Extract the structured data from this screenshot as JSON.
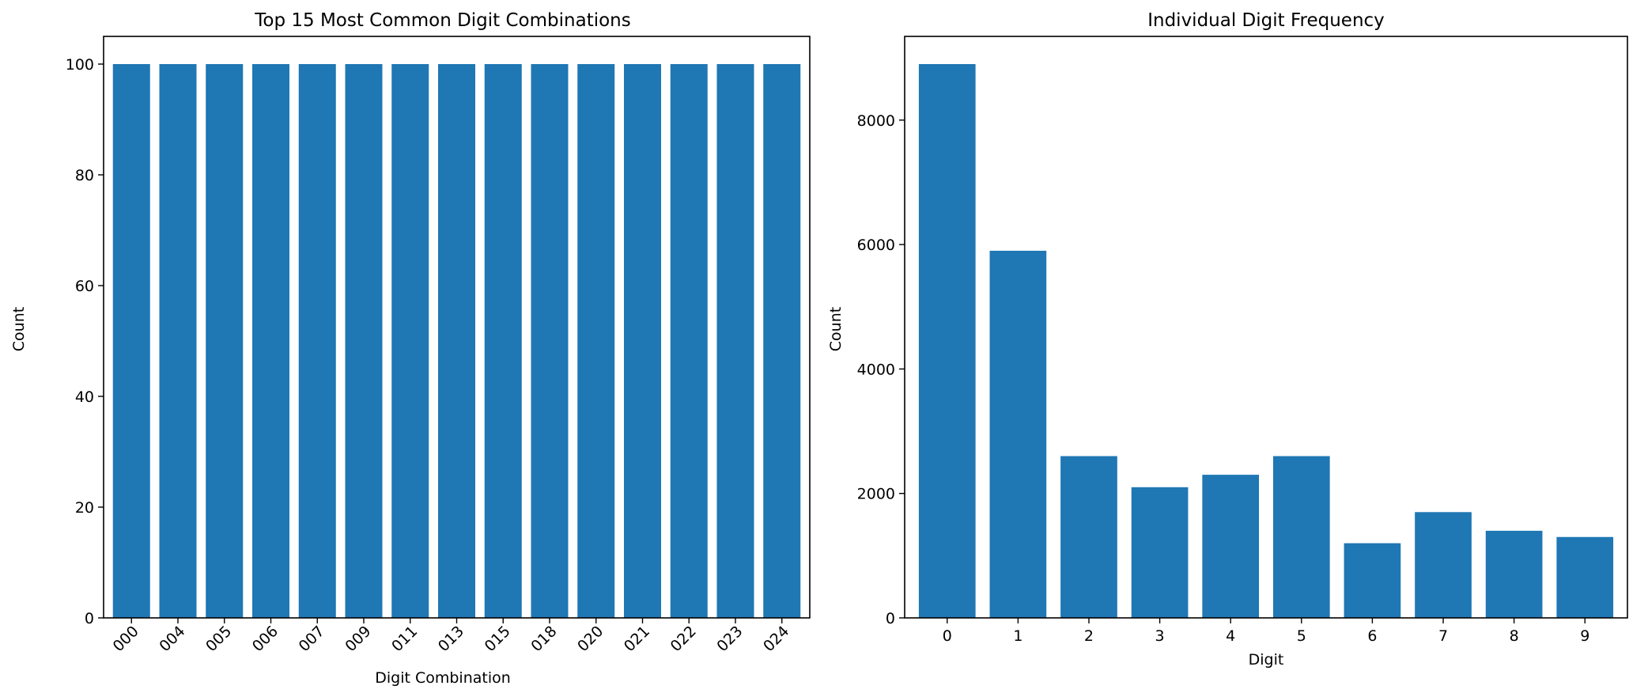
{
  "chart_data": [
    {
      "type": "bar",
      "title": "Top 15 Most Common Digit Combinations",
      "xlabel": "Digit Combination",
      "ylabel": "Count",
      "categories": [
        "000",
        "004",
        "005",
        "006",
        "007",
        "009",
        "011",
        "013",
        "015",
        "018",
        "020",
        "021",
        "022",
        "023",
        "024"
      ],
      "values": [
        100,
        100,
        100,
        100,
        100,
        100,
        100,
        100,
        100,
        100,
        100,
        100,
        100,
        100,
        100
      ],
      "ylim": [
        0,
        105
      ],
      "yticks": [
        0,
        20,
        40,
        60,
        80,
        100
      ],
      "xtick_rotation": 45,
      "bar_color": "#1f77b4",
      "grid": false
    },
    {
      "type": "bar",
      "title": "Individual Digit Frequency",
      "xlabel": "Digit",
      "ylabel": "Count",
      "categories": [
        "0",
        "1",
        "2",
        "3",
        "4",
        "5",
        "6",
        "7",
        "8",
        "9"
      ],
      "values": [
        8900,
        5900,
        2600,
        2100,
        2300,
        2600,
        1200,
        1700,
        1400,
        1300
      ],
      "ylim": [
        0,
        9345
      ],
      "yticks": [
        0,
        2000,
        4000,
        6000,
        8000
      ],
      "xtick_rotation": 0,
      "bar_color": "#1f77b4",
      "grid": false
    }
  ]
}
